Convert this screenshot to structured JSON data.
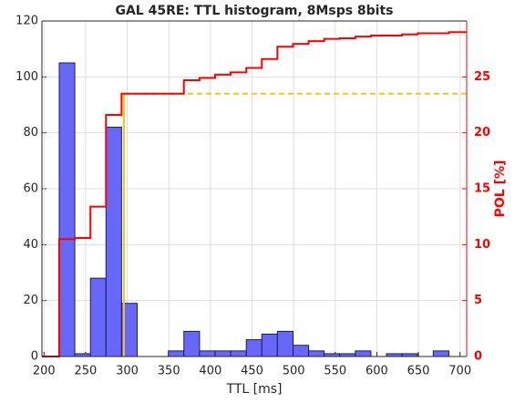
{
  "chart_data": {
    "type": "histogram",
    "title": "GAL 45RE: TTL histogram, 8Msps 8bits",
    "xlabel": "TTL [ms]",
    "y2label": "POL [%]",
    "bins": [
      218.3,
      237.0,
      255.8,
      274.5,
      293.2,
      312.0,
      330.7,
      349.4,
      368.1,
      386.9,
      405.6,
      424.3,
      443.1,
      461.8,
      480.5,
      499.3,
      518.0,
      536.7,
      555.4,
      574.2,
      592.9,
      611.6,
      630.4,
      649.1,
      667.8,
      686.6
    ],
    "values": [
      105,
      1,
      28,
      82,
      19,
      0,
      0,
      2,
      9,
      2,
      2,
      2,
      6,
      8,
      9,
      4,
      2,
      1,
      1,
      2,
      0,
      1,
      1,
      0,
      2
    ],
    "color": "#6868f8",
    "edgecolor": "#1a1a66",
    "step_series": {
      "color": "#ff0000",
      "axis": "y2",
      "x": [
        197.5,
        218.3,
        237.0,
        255.8,
        274.5,
        293.2,
        368.1,
        386.9,
        405.6,
        424.3,
        443.1,
        461.8,
        480.5,
        499.3,
        518.0,
        536.7,
        555.4,
        574.2,
        592.9,
        630.4,
        649.1,
        686.6,
        708
      ],
      "values": [
        0,
        10.5,
        10.6,
        13.4,
        21.6,
        23.5,
        24.7,
        24.9,
        25.2,
        25.4,
        25.8,
        26.6,
        27.7,
        27.95,
        28.2,
        28.4,
        28.45,
        28.6,
        28.7,
        28.8,
        28.9,
        29.0,
        29.0
      ]
    },
    "reference_line": {
      "x": 296,
      "value": 23.5,
      "color": "#f5c518"
    },
    "xlim": [
      197.5,
      708
    ],
    "xticks": [
      200,
      250,
      300,
      350,
      400,
      450,
      500,
      550,
      600,
      650,
      700
    ],
    "ylim": [
      0,
      120
    ],
    "yticks": [
      0,
      20,
      40,
      60,
      80,
      100,
      120
    ],
    "y2lim": [
      0,
      30
    ],
    "y2ticks": [
      0,
      5,
      10,
      15,
      20,
      25
    ],
    "y2color": "#ff0000",
    "grid": true
  }
}
